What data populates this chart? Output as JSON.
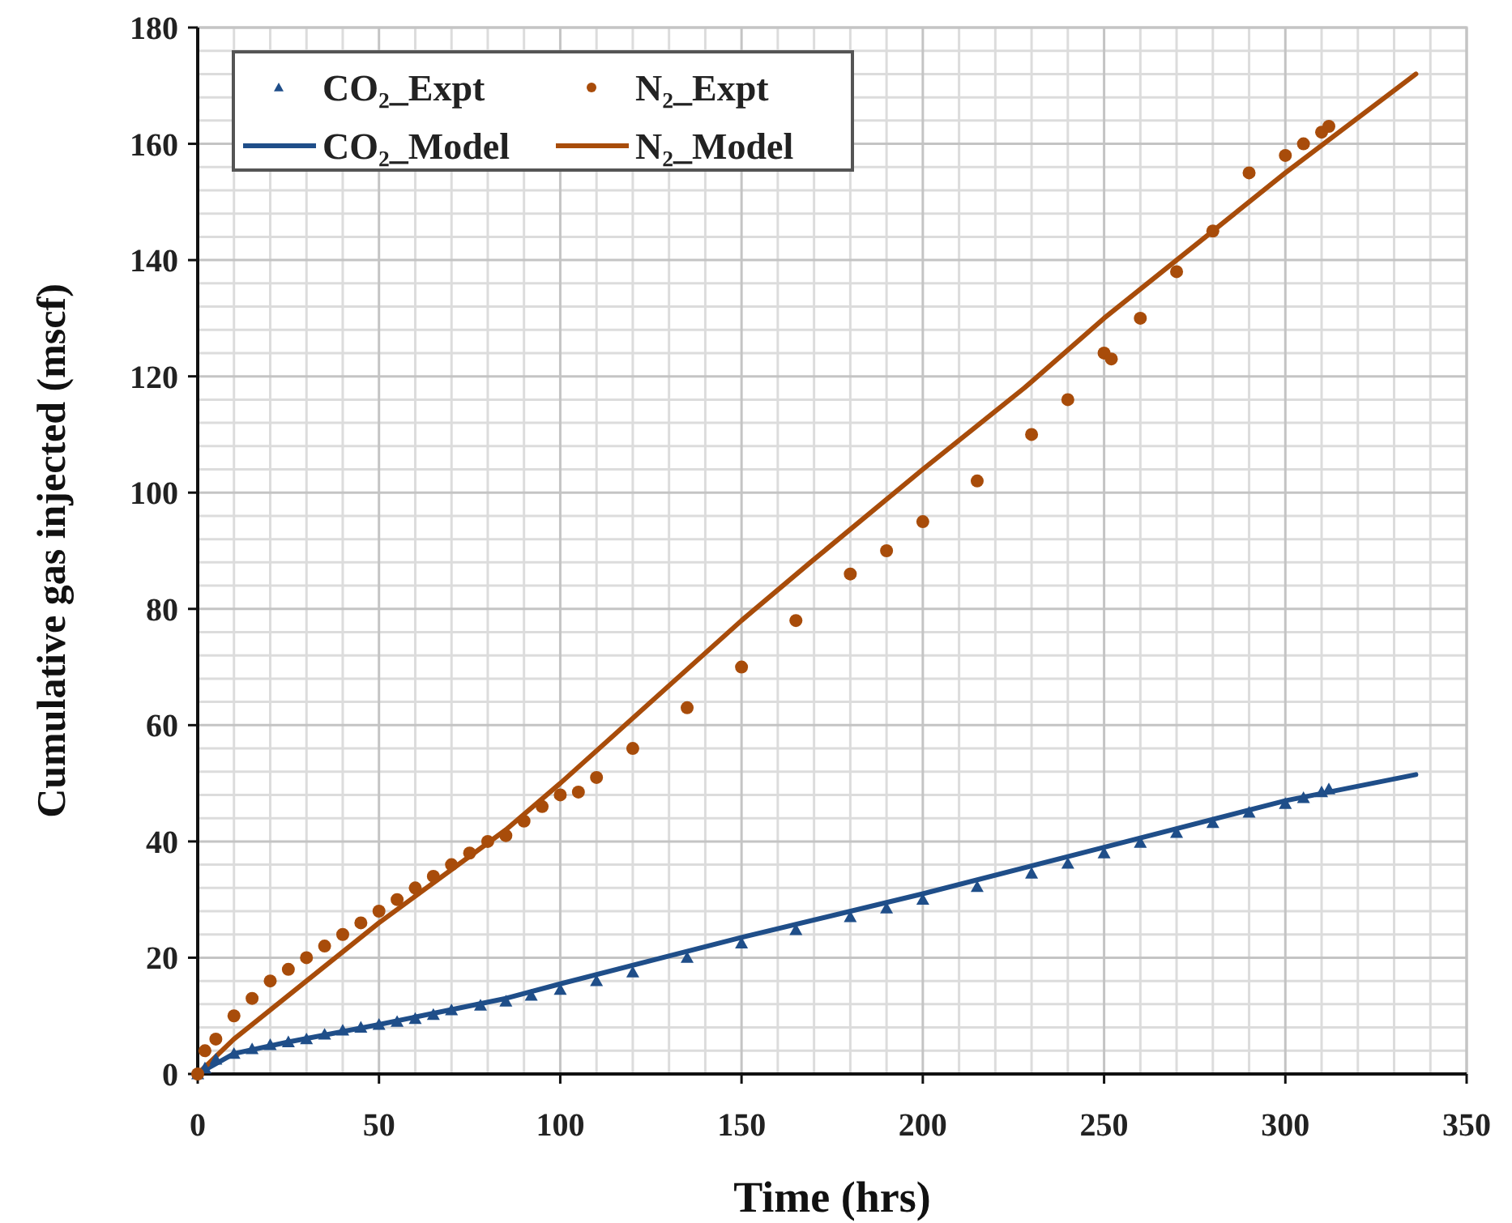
{
  "chart_data": {
    "type": "line",
    "xlabel": "Time (hrs)",
    "ylabel": "Cumulative gas injected (mscf)",
    "xlim": [
      0,
      350
    ],
    "ylim": [
      0,
      180
    ],
    "xticks": [
      0,
      50,
      100,
      150,
      200,
      250,
      300,
      350
    ],
    "yticks": [
      0,
      20,
      40,
      60,
      80,
      100,
      120,
      140,
      160,
      180
    ],
    "grid": true,
    "legend": "top left",
    "series": [
      {
        "name": "CO₂_Expt",
        "type": "scatter",
        "marker": "triangle",
        "color": "#1f4e89",
        "x": [
          0,
          2,
          5,
          10,
          15,
          20,
          25,
          30,
          35,
          40,
          45,
          50,
          55,
          60,
          65,
          70,
          78,
          85,
          92,
          100,
          110,
          120,
          135,
          150,
          165,
          180,
          190,
          200,
          215,
          230,
          240,
          250,
          260,
          270,
          280,
          290,
          300,
          305,
          310,
          312
        ],
        "values": [
          0,
          1,
          2.5,
          3.5,
          4.3,
          5,
          5.5,
          6,
          6.8,
          7.5,
          8,
          8.5,
          9,
          9.5,
          10.2,
          11,
          11.8,
          12.5,
          13.5,
          14.5,
          16,
          17.5,
          20,
          22.5,
          24.8,
          27,
          28.5,
          30,
          32.2,
          34.5,
          36.2,
          38,
          39.8,
          41.5,
          43.2,
          45,
          46.5,
          47.5,
          48.5,
          49
        ]
      },
      {
        "name": "N₂_Expt",
        "type": "scatter",
        "marker": "circle",
        "color": "#a84c0a",
        "x": [
          0,
          2,
          5,
          10,
          15,
          20,
          25,
          30,
          35,
          40,
          45,
          50,
          55,
          60,
          65,
          70,
          75,
          80,
          85,
          90,
          95,
          100,
          105,
          110,
          120,
          135,
          150,
          165,
          180,
          190,
          200,
          215,
          230,
          240,
          250,
          252,
          260,
          270,
          280,
          290,
          300,
          305,
          310,
          312
        ],
        "values": [
          0,
          4,
          6,
          10,
          13,
          16,
          18,
          20,
          22,
          24,
          26,
          28,
          30,
          32,
          34,
          36,
          38,
          40,
          41,
          43.5,
          46,
          48,
          48.5,
          51,
          56,
          63,
          70,
          78,
          86,
          90,
          95,
          102,
          110,
          116,
          124,
          123,
          130,
          138,
          145,
          155,
          158,
          160,
          162,
          163
        ]
      },
      {
        "name": "CO₂_Model",
        "color": "#1f4e89",
        "x": [
          0,
          10,
          25,
          50,
          85,
          100,
          150,
          200,
          250,
          300,
          336
        ],
        "values": [
          0,
          3.5,
          5.5,
          8.5,
          13,
          15.5,
          23.5,
          31,
          39,
          47,
          51.5
        ]
      },
      {
        "name": "N₂_Model",
        "color": "#a84c0a",
        "x": [
          0,
          10,
          30,
          50,
          85,
          100,
          150,
          169,
          200,
          228,
          250,
          282,
          300,
          336
        ],
        "values": [
          0,
          6,
          16,
          26,
          42,
          50,
          78,
          88,
          104,
          118,
          130,
          146,
          155,
          172
        ]
      }
    ]
  }
}
